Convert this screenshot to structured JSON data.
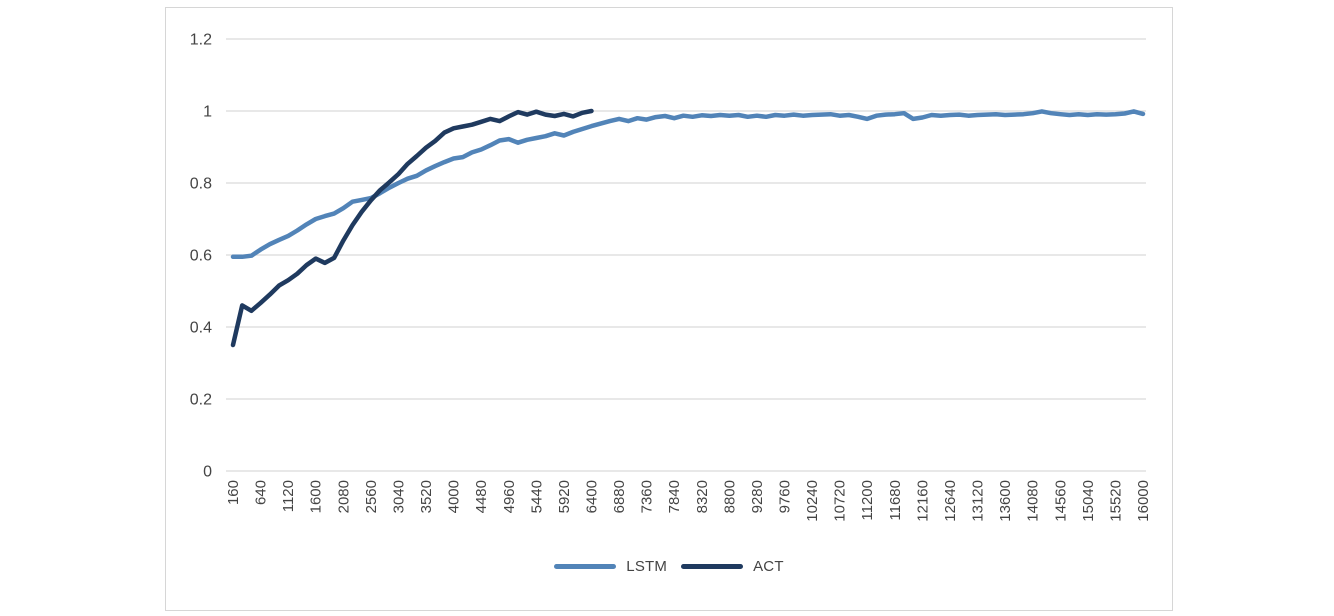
{
  "page": {
    "background": "#ffffff"
  },
  "chart": {
    "frame_border_color": "#d6d6d6",
    "plot_background": "#ffffff",
    "gridline_color": "#d9d9d9",
    "axis_text_color": "#444444"
  },
  "chart_data": {
    "type": "line",
    "title": "",
    "xlabel": "",
    "ylabel": "",
    "grid": true,
    "legend_position": "bottom",
    "ylim": [
      0,
      1.2
    ],
    "y_tick_labels": [
      "0",
      "0.2",
      "0.4",
      "0.6",
      "0.8",
      "1",
      "1.2"
    ],
    "y_tick_values": [
      0,
      0.2,
      0.4,
      0.6,
      0.8,
      1,
      1.2
    ],
    "x_tick_labels": [
      160,
      640,
      1120,
      1600,
      2080,
      2560,
      3040,
      3520,
      4000,
      4480,
      4960,
      5440,
      5920,
      6400,
      6880,
      7360,
      7840,
      8320,
      8800,
      9280,
      9760,
      10240,
      10720,
      11200,
      11680,
      12160,
      12640,
      13120,
      13600,
      14080,
      14560,
      15040,
      15520,
      16000
    ],
    "xlim": [
      160,
      16000
    ],
    "series": [
      {
        "name": "LSTM",
        "color": "#5284b8",
        "x_start": 160,
        "x_step": 160,
        "values": [
          0.595,
          0.595,
          0.598,
          0.615,
          0.63,
          0.642,
          0.653,
          0.668,
          0.685,
          0.7,
          0.708,
          0.715,
          0.73,
          0.748,
          0.753,
          0.758,
          0.772,
          0.787,
          0.8,
          0.812,
          0.82,
          0.835,
          0.847,
          0.858,
          0.868,
          0.872,
          0.885,
          0.893,
          0.905,
          0.918,
          0.922,
          0.912,
          0.92,
          0.925,
          0.93,
          0.938,
          0.932,
          0.942,
          0.95,
          0.958,
          0.965,
          0.972,
          0.978,
          0.972,
          0.98,
          0.976,
          0.983,
          0.986,
          0.98,
          0.987,
          0.984,
          0.988,
          0.986,
          0.989,
          0.987,
          0.989,
          0.984,
          0.987,
          0.984,
          0.989,
          0.987,
          0.99,
          0.987,
          0.989,
          0.99,
          0.991,
          0.987,
          0.989,
          0.984,
          0.978,
          0.987,
          0.99,
          0.991,
          0.994,
          0.978,
          0.982,
          0.989,
          0.987,
          0.989,
          0.99,
          0.987,
          0.989,
          0.99,
          0.991,
          0.989,
          0.99,
          0.991,
          0.994,
          0.999,
          0.994,
          0.991,
          0.989,
          0.991,
          0.989,
          0.991,
          0.99,
          0.991,
          0.993,
          0.999,
          0.992
        ]
      },
      {
        "name": "ACT",
        "color": "#1f3a5f",
        "x_start": 160,
        "x_step": 160,
        "values": [
          0.35,
          0.46,
          0.445,
          0.467,
          0.49,
          0.515,
          0.53,
          0.548,
          0.572,
          0.59,
          0.578,
          0.592,
          0.64,
          0.683,
          0.72,
          0.752,
          0.78,
          0.802,
          0.825,
          0.853,
          0.875,
          0.898,
          0.917,
          0.94,
          0.952,
          0.957,
          0.962,
          0.97,
          0.978,
          0.972,
          0.985,
          0.997,
          0.99,
          0.998,
          0.99,
          0.986,
          0.992,
          0.985,
          0.995,
          1.0
        ]
      }
    ]
  },
  "legend": {
    "items": [
      {
        "label": "LSTM"
      },
      {
        "label": "ACT"
      }
    ]
  }
}
